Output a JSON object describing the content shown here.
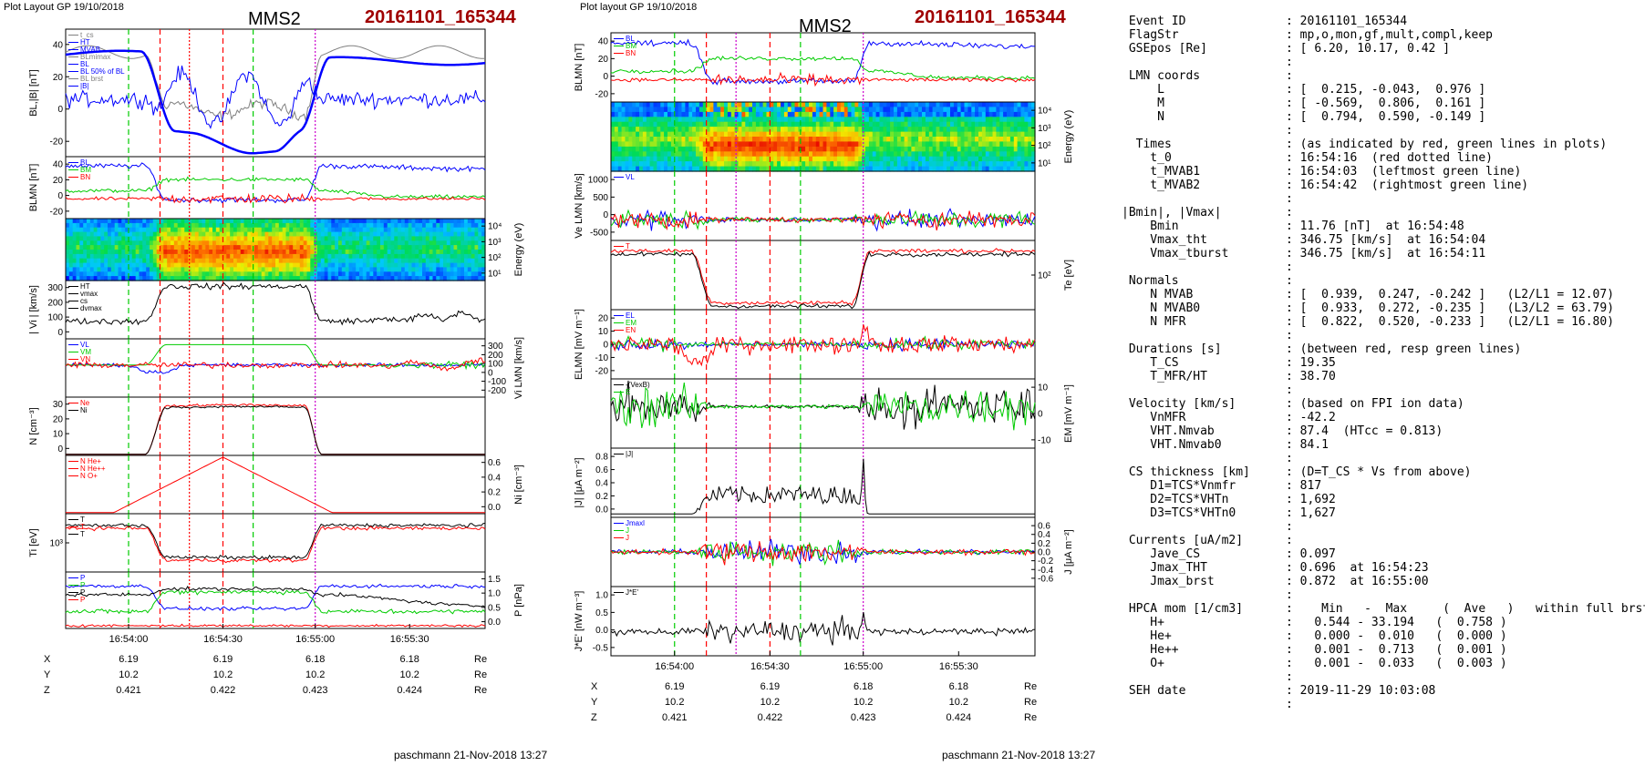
{
  "header": {
    "left_plot_label": "Plot Layout GP 19/10/2018",
    "mid_plot_label": "Plot layout GP 19/10/2018",
    "spacecraft": "MMS2",
    "event": "20161101_165344"
  },
  "footer": {
    "left": "paschmann 21-Nov-2018 13:27",
    "right": "paschmann 21-Nov-2018 13:27"
  },
  "colors": {
    "blue": "#0000ff",
    "green": "#00cc00",
    "red": "#ff0000",
    "black": "#000000",
    "grey": "#808080",
    "magenta": "#cc00cc",
    "event_red": "#a00000"
  },
  "chart_data": [
    {
      "id": "left",
      "type": "line",
      "xticks": [
        "16:54:00",
        "16:54:30",
        "16:55:00",
        "16:55:30"
      ],
      "ephemeris": {
        "rows": [
          {
            "name": "X",
            "values": [
              "6.19",
              "6.19",
              "6.18",
              "6.18"
            ],
            "unit": "Re"
          },
          {
            "name": "Y",
            "values": [
              "10.2",
              "10.2",
              "10.2",
              "10.2"
            ],
            "unit": "Re"
          },
          {
            "name": "Z",
            "values": [
              "0.421",
              "0.422",
              "0.423",
              "0.424"
            ],
            "unit": "Re"
          }
        ]
      },
      "markers": [
        {
          "pos": 0.15,
          "color": "green"
        },
        {
          "pos": 0.225,
          "color": "red"
        },
        {
          "pos": 0.295,
          "color": "red",
          "dotted": true
        },
        {
          "pos": 0.375,
          "color": "red"
        },
        {
          "pos": 0.447,
          "color": "green"
        },
        {
          "pos": 0.595,
          "color": "magenta",
          "dotted": true
        }
      ],
      "panels": [
        {
          "id": "bl-babs",
          "ylabel": "BL,|B| [nT]",
          "ylabel_side": "left",
          "yticks": [
            "40",
            "20",
            "0",
            "-20"
          ],
          "legend": [
            "t_cs",
            "HT",
            "MVAB",
            "BLmimax",
            "BL",
            "BL 50% of BL",
            "BL brst",
            "|B|"
          ],
          "series": [
            {
              "color": "grey",
              "shape": "bfield_abs"
            },
            {
              "color": "blue",
              "shape": "bl_smooth",
              "bold": true
            },
            {
              "color": "blue",
              "shape": "bl_brst"
            }
          ]
        },
        {
          "id": "blmn",
          "ylabel": "BLMN [nT]",
          "ylabel_side": "left",
          "yticks": [
            "40",
            "20",
            "0",
            "-20"
          ],
          "legend": [
            "BL",
            "BM",
            "BN"
          ],
          "series": [
            {
              "color": "blue",
              "shape": "bl"
            },
            {
              "color": "green",
              "shape": "bm"
            },
            {
              "color": "red",
              "shape": "bn"
            }
          ]
        },
        {
          "id": "ion-spec",
          "ylabel": "Energy (eV)",
          "ylabel_side": "right",
          "yticks": [
            "10⁴",
            "10³",
            "10²",
            "10¹"
          ],
          "spectrogram": "ion"
        },
        {
          "id": "vi-abs",
          "ylabel": "| Vi | [km/s]",
          "ylabel_side": "left",
          "yticks": [
            "300",
            "200",
            "100",
            "0"
          ],
          "legend": [
            "HT",
            "vmax",
            "cs",
            "dvmax"
          ],
          "series": [
            {
              "color": "black",
              "shape": "vi_abs"
            }
          ]
        },
        {
          "id": "vi-lmn",
          "ylabel": "Vi LMN [km/s]",
          "ylabel_side": "right",
          "yticks": [
            "300",
            "200",
            "100",
            "0",
            "-100",
            "-200"
          ],
          "legend": [
            "VL",
            "VM",
            "VN"
          ],
          "series": [
            {
              "color": "blue",
              "shape": "vl"
            },
            {
              "color": "green",
              "shape": "vm"
            },
            {
              "color": "red",
              "shape": "vn"
            }
          ]
        },
        {
          "id": "density",
          "ylabel": "N [cm⁻³]",
          "ylabel_side": "left",
          "yticks": [
            "30",
            "20",
            "10",
            "0"
          ],
          "legend": [
            "Ne",
            "Ni"
          ],
          "series": [
            {
              "color": "red",
              "shape": "density"
            },
            {
              "color": "black",
              "shape": "density2"
            }
          ]
        },
        {
          "id": "hpca",
          "ylabel": "Ni [cm⁻³]",
          "ylabel_side": "right",
          "yticks": [
            "0.6",
            "0.4",
            "0.2",
            "0.0"
          ],
          "legend": [
            "N He+",
            "N He++",
            "N O+"
          ],
          "series": [
            {
              "color": "red",
              "shape": "hpca"
            }
          ]
        },
        {
          "id": "ti",
          "ylabel": "Ti [eV]",
          "ylabel_side": "left",
          "yticks": [
            "10³"
          ],
          "legend": [
            "T",
            "T",
            "T"
          ],
          "series": [
            {
              "color": "black",
              "shape": "ti"
            },
            {
              "color": "red",
              "shape": "ti2"
            }
          ]
        },
        {
          "id": "pressure",
          "ylabel": "P [nPa]",
          "ylabel_side": "right",
          "yticks": [
            "1.5",
            "1.0",
            "0.5",
            "0.0"
          ],
          "legend": [
            "P",
            "P",
            "P",
            "P"
          ],
          "series": [
            {
              "color": "blue",
              "shape": "pB"
            },
            {
              "color": "green",
              "shape": "pth"
            },
            {
              "color": "black",
              "shape": "ptot"
            },
            {
              "color": "red",
              "shape": "pdyn"
            }
          ]
        }
      ]
    },
    {
      "id": "mid",
      "type": "line",
      "xticks": [
        "16:54:00",
        "16:54:30",
        "16:55:00",
        "16:55:30"
      ],
      "ephemeris": {
        "rows": [
          {
            "name": "X",
            "values": [
              "6.19",
              "6.19",
              "6.18",
              "6.18"
            ],
            "unit": "Re"
          },
          {
            "name": "Y",
            "values": [
              "10.2",
              "10.2",
              "10.2",
              "10.2"
            ],
            "unit": "Re"
          },
          {
            "name": "Z",
            "values": [
              "0.421",
              "0.422",
              "0.423",
              "0.424"
            ],
            "unit": "Re"
          }
        ]
      },
      "markers": [
        {
          "pos": 0.15,
          "color": "green"
        },
        {
          "pos": 0.225,
          "color": "red"
        },
        {
          "pos": 0.295,
          "color": "magenta",
          "dotted": true
        },
        {
          "pos": 0.375,
          "color": "red"
        },
        {
          "pos": 0.447,
          "color": "green"
        },
        {
          "pos": 0.595,
          "color": "magenta",
          "dotted": true
        }
      ],
      "panels": [
        {
          "id": "blmn2",
          "ylabel": "BLMN [nT]",
          "ylabel_side": "left",
          "yticks": [
            "40",
            "20",
            "0",
            "-20"
          ],
          "legend": [
            "BL",
            "BM",
            "BN"
          ],
          "series": [
            {
              "color": "blue",
              "shape": "bl"
            },
            {
              "color": "green",
              "shape": "bm"
            },
            {
              "color": "red",
              "shape": "bn"
            }
          ]
        },
        {
          "id": "elec-spec",
          "ylabel": "Energy (eV)",
          "ylabel_side": "right",
          "yticks": [
            "10⁴",
            "10³",
            "10²",
            "10¹"
          ],
          "spectrogram": "electron"
        },
        {
          "id": "ve-lmn",
          "ylabel": "Ve LMN [km/s]",
          "ylabel_side": "left",
          "yticks": [
            "1000",
            "500",
            "0",
            "-500"
          ],
          "legend": [
            "VL"
          ],
          "series": [
            {
              "color": "blue",
              "shape": "ve"
            },
            {
              "color": "green",
              "shape": "ve"
            },
            {
              "color": "red",
              "shape": "ve"
            }
          ]
        },
        {
          "id": "te",
          "ylabel": "Te [eV]",
          "ylabel_side": "right",
          "yticks": [
            "10²"
          ],
          "legend": [
            "T"
          ],
          "series": [
            {
              "color": "red",
              "shape": "te"
            },
            {
              "color": "black",
              "shape": "te2"
            }
          ]
        },
        {
          "id": "elmn",
          "ylabel": "ELMN [mV m⁻¹]",
          "ylabel_side": "left",
          "yticks": [
            "20",
            "10",
            "0",
            "-10",
            "-20"
          ],
          "legend": [
            "EL",
            "EM",
            "EN"
          ],
          "series": [
            {
              "color": "blue",
              "shape": "efield"
            },
            {
              "color": "green",
              "shape": "efield"
            },
            {
              "color": "red",
              "shape": "efield_big"
            }
          ]
        },
        {
          "id": "em",
          "ylabel": "EM [mV m⁻¹]",
          "ylabel_side": "right",
          "yticks": [
            "10",
            "0",
            "-10"
          ],
          "legend": [
            "-(VexB)",
            "E"
          ],
          "series": [
            {
              "color": "black",
              "shape": "em"
            },
            {
              "color": "green",
              "shape": "em"
            }
          ]
        },
        {
          "id": "jabs",
          "ylabel": "|J| [μA m⁻²]",
          "ylabel_side": "left",
          "yticks": [
            "0.8",
            "0.6",
            "0.4",
            "0.2",
            "0.0"
          ],
          "legend": [
            "|J|"
          ],
          "series": [
            {
              "color": "black",
              "shape": "jabs"
            }
          ]
        },
        {
          "id": "jlmn",
          "ylabel": "J [μA m⁻²]",
          "ylabel_side": "right",
          "yticks": [
            "0.6",
            "0.4",
            "0.2",
            "0.0",
            "-0.2",
            "-0.4",
            "-0.6"
          ],
          "legend": [
            "Jmaxl",
            "J",
            "J"
          ],
          "series": [
            {
              "color": "blue",
              "shape": "j"
            },
            {
              "color": "green",
              "shape": "j"
            },
            {
              "color": "red",
              "shape": "j"
            }
          ]
        },
        {
          "id": "jdote",
          "ylabel": "J*E' [nW m⁻³]",
          "ylabel_side": "left",
          "yticks": [
            "1.0",
            "0.5",
            "0.0",
            "-0.5"
          ],
          "legend": [
            "J*E'"
          ],
          "series": [
            {
              "color": "black",
              "shape": "jdote"
            }
          ]
        }
      ]
    }
  ],
  "info": {
    "rows": [
      " Event ID              : 20161101_165344",
      " FlagStr               : mp,o,mon,gf,mult,compl,keep",
      " GSEpos [Re]           : [ 6.20, 10.17, 0.42 ]",
      "                       :",
      " LMN coords            :",
      "     L                 : [  0.215, -0.043,  0.976 ]",
      "     M                 : [ -0.569,  0.806,  0.161 ]",
      "     N                 : [  0.794,  0.590, -0.149 ]",
      "                       :",
      "  Times                : (as indicated by red, green lines in plots)",
      "    t_0                : 16:54:16  (red dotted line)",
      "    t_MVAB1            : 16:54:03  (leftmost green line)",
      "    t_MVAB2            : 16:54:42  (rightmost green line)",
      "                       :",
      "|Bmin|, |Vmax|         :",
      "    Bmin               : 11.76 [nT]  at 16:54:48",
      "    Vmax_tht           : 346.75 [km/s]  at 16:54:04",
      "    Vmax_tburst        : 346.75 [km/s]  at 16:54:11",
      "                       :",
      " Normals               :",
      "    N MVAB             : [  0.939,  0.247, -0.242 ]   (L2/L1 = 12.07)",
      "    N MVAB0            : [  0.933,  0.272, -0.235 ]   (L3/L2 = 63.79)",
      "    N MFR              : [  0.822,  0.520, -0.233 ]   (L2/L1 = 16.80)",
      "                       :",
      " Durations [s]         : (between red, resp green lines)",
      "    T_CS               : 19.35",
      "    T_MFR/HT           : 38.70",
      "                       :",
      " Velocity [km/s]       : (based on FPI ion data)",
      "    VnMFR              : -42.2",
      "    VHT.Nmvab          : 87.4  (HTcc = 0.813)",
      "    VHT.Nmvab0         : 84.1",
      "                       :",
      " CS thickness [km]     : (D=T_CS * Vs from above)",
      "    D1=TCS*Vnmfr       : 817",
      "    D2=TCS*VHTn        : 1,692",
      "    D3=TCS*VHTn0       : 1,627",
      "                       :",
      " Currents [uA/m2]      :",
      "    Jave_CS            : 0.097",
      "    Jmax_THT           : 0.696  at 16:54:23",
      "    Jmax_brst          : 0.872  at 16:55:00",
      "                       :",
      " HPCA mom [1/cm3]      :    Min   -  Max     (  Ave   )   within full brst int",
      "    H+                 :   0.544 - 33.194   (  0.758 )",
      "    He+                :   0.000 -  0.010   (  0.000 )",
      "    He++               :   0.001 -  0.713   (  0.001 )",
      "    O+                 :   0.001 -  0.033   (  0.003 )",
      "                       :",
      " SEH date              : 2019-11-29 10:03:08",
      "                       :"
    ]
  }
}
